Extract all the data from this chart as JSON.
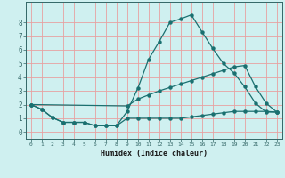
{
  "xlabel": "Humidex (Indice chaleur)",
  "bg_color": "#cff0f0",
  "grid_color": "#e8a0a0",
  "line_color": "#1a7070",
  "xlim": [
    -0.5,
    23.5
  ],
  "ylim": [
    -0.5,
    9.5
  ],
  "xticks": [
    0,
    1,
    2,
    3,
    4,
    5,
    6,
    7,
    8,
    9,
    10,
    11,
    12,
    13,
    14,
    15,
    16,
    17,
    18,
    19,
    20,
    21,
    22,
    23
  ],
  "yticks": [
    0,
    1,
    2,
    3,
    4,
    5,
    6,
    7,
    8
  ],
  "line1_x": [
    0,
    1,
    2,
    3,
    4,
    5,
    6,
    7,
    8,
    9,
    10,
    11,
    12,
    13,
    14,
    15,
    16,
    17,
    18,
    19,
    20,
    21,
    22,
    23
  ],
  "line1_y": [
    2.0,
    1.65,
    1.05,
    0.7,
    0.7,
    0.7,
    0.45,
    0.45,
    0.45,
    1.5,
    3.2,
    5.3,
    6.6,
    8.0,
    8.25,
    8.55,
    7.3,
    6.1,
    5.0,
    4.3,
    3.3,
    2.1,
    1.45,
    1.45
  ],
  "line2_x": [
    0,
    9,
    10,
    11,
    12,
    13,
    14,
    15,
    16,
    17,
    18,
    19,
    20,
    21,
    22,
    23
  ],
  "line2_y": [
    2.0,
    1.9,
    2.4,
    2.7,
    3.0,
    3.25,
    3.5,
    3.75,
    4.0,
    4.25,
    4.5,
    4.75,
    4.85,
    3.3,
    2.1,
    1.45
  ],
  "line3_x": [
    0,
    1,
    2,
    3,
    4,
    5,
    6,
    7,
    8,
    9,
    10,
    11,
    12,
    13,
    14,
    15,
    16,
    17,
    18,
    19,
    20,
    21,
    22,
    23
  ],
  "line3_y": [
    2.0,
    1.65,
    1.05,
    0.7,
    0.7,
    0.7,
    0.45,
    0.45,
    0.45,
    1.0,
    1.0,
    1.0,
    1.0,
    1.0,
    1.0,
    1.1,
    1.2,
    1.3,
    1.4,
    1.5,
    1.5,
    1.5,
    1.5,
    1.45
  ]
}
